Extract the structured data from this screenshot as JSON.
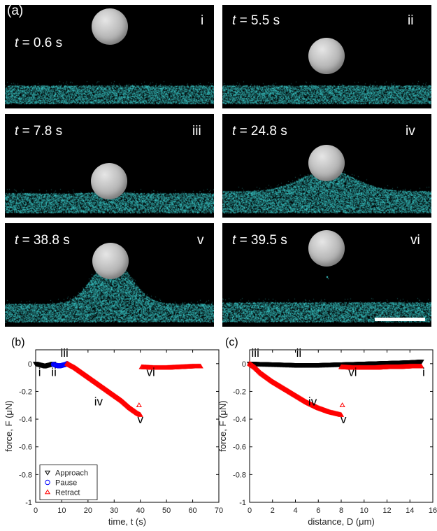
{
  "panel_a": {
    "label": "(a)",
    "t_symbol": "t",
    "frames": [
      {
        "time": "= 0.6 s",
        "roman": "i"
      },
      {
        "time": "= 5.5 s",
        "roman": "ii"
      },
      {
        "time": "= 7.8 s",
        "roman": "iii"
      },
      {
        "time": "= 24.8 s",
        "roman": "iv"
      },
      {
        "time": "= 38.8 s",
        "roman": "v"
      },
      {
        "time": "= 39.5 s",
        "roman": "vi"
      }
    ],
    "colors": {
      "background": "#000000",
      "particles": "#3fd6d6",
      "sphere": "#b5b5b5"
    }
  },
  "chart_data": [
    {
      "type": "scatter",
      "panel_label": "(b)",
      "xlabel": "time, t (s)",
      "ylabel": "force, F (μN)",
      "xlim": [
        0,
        70
      ],
      "ylim": [
        -1,
        0.1
      ],
      "xticks": [
        0,
        10,
        20,
        30,
        40,
        50,
        60,
        70
      ],
      "yticks": [
        0,
        -0.2,
        -0.4,
        -0.6,
        -0.8,
        -1
      ],
      "ytick_labels": [
        "0",
        "-0.2",
        "-0.4",
        "-0.6",
        "-0.8",
        "-1"
      ],
      "legend_position": "bottom-left",
      "series": [
        {
          "name": "Approach",
          "marker": "triangle-down",
          "color": "#000000",
          "x": [
            0,
            1,
            2,
            3,
            4,
            5,
            6,
            6.8
          ],
          "y": [
            0,
            -0.005,
            -0.01,
            -0.015,
            -0.015,
            -0.01,
            -0.005,
            0
          ]
        },
        {
          "name": "Pause",
          "marker": "circle",
          "color": "#0000ff",
          "x": [
            6.8,
            7.5,
            8.5,
            9.5,
            10.5,
            11.5,
            12
          ],
          "y": [
            -0.005,
            -0.01,
            -0.015,
            -0.015,
            -0.01,
            -0.005,
            0
          ]
        },
        {
          "name": "Retract",
          "marker": "triangle-up",
          "color": "#ff0000",
          "x": [
            12,
            15,
            18,
            21,
            24,
            27,
            30,
            33,
            36,
            39,
            40,
            40.5,
            45,
            50,
            55,
            60,
            63
          ],
          "y": [
            0,
            -0.03,
            -0.07,
            -0.11,
            -0.15,
            -0.19,
            -0.23,
            -0.27,
            -0.32,
            -0.36,
            -0.37,
            -0.025,
            -0.03,
            -0.03,
            -0.025,
            -0.02,
            -0.02
          ]
        }
      ],
      "outlier": {
        "x": 39.5,
        "y": -0.3,
        "color": "#ff0000"
      },
      "annotations": [
        {
          "text": "i",
          "x": 1.5,
          "y": -0.09
        },
        {
          "text": "ii",
          "x": 7,
          "y": -0.09
        },
        {
          "text": "iii",
          "x": 11,
          "y": 0.05
        },
        {
          "text": "iv",
          "x": 24,
          "y": -0.3
        },
        {
          "text": "v",
          "x": 40,
          "y": -0.43
        },
        {
          "text": "vi",
          "x": 44,
          "y": -0.09
        }
      ]
    },
    {
      "type": "scatter",
      "panel_label": "(c)",
      "xlabel": "distance, D (μm)",
      "ylabel": "force, F (μN)",
      "xlim": [
        0,
        16
      ],
      "ylim": [
        -1,
        0.1
      ],
      "xticks": [
        0,
        2,
        4,
        6,
        8,
        10,
        12,
        14,
        16
      ],
      "yticks": [
        0,
        -0.2,
        -0.4,
        -0.6,
        -0.8,
        -1
      ],
      "ytick_labels": [
        "0",
        "-0.2",
        "-0.4",
        "-0.6",
        "-0.8",
        "-1"
      ],
      "series": [
        {
          "name": "Approach",
          "marker": "triangle-down",
          "color": "#000000",
          "x": [
            0,
            2,
            4,
            6,
            8,
            10,
            12,
            14,
            15
          ],
          "y": [
            0,
            -0.005,
            -0.01,
            -0.01,
            -0.005,
            0,
            0.005,
            0.01,
            0.015
          ]
        },
        {
          "name": "Retract",
          "marker": "triangle-up",
          "color": "#ff0000",
          "x": [
            0,
            0.5,
            1,
            2,
            3,
            4,
            5,
            6,
            7,
            8,
            8,
            9,
            10,
            11,
            12,
            13,
            14,
            15
          ],
          "y": [
            0,
            -0.03,
            -0.07,
            -0.13,
            -0.18,
            -0.23,
            -0.28,
            -0.32,
            -0.35,
            -0.37,
            -0.025,
            -0.03,
            -0.03,
            -0.03,
            -0.025,
            -0.025,
            -0.02,
            -0.02
          ]
        }
      ],
      "outlier": {
        "x": 8.1,
        "y": -0.3,
        "color": "#ff0000"
      },
      "annotations": [
        {
          "text": "iii",
          "x": 0.5,
          "y": 0.05
        },
        {
          "text": "ii",
          "x": 4.3,
          "y": 0.05
        },
        {
          "text": "i",
          "x": 15.2,
          "y": -0.09
        },
        {
          "text": "iv",
          "x": 5.5,
          "y": -0.3
        },
        {
          "text": "v",
          "x": 8.2,
          "y": -0.43
        },
        {
          "text": "vi",
          "x": 9,
          "y": -0.09
        }
      ]
    }
  ]
}
